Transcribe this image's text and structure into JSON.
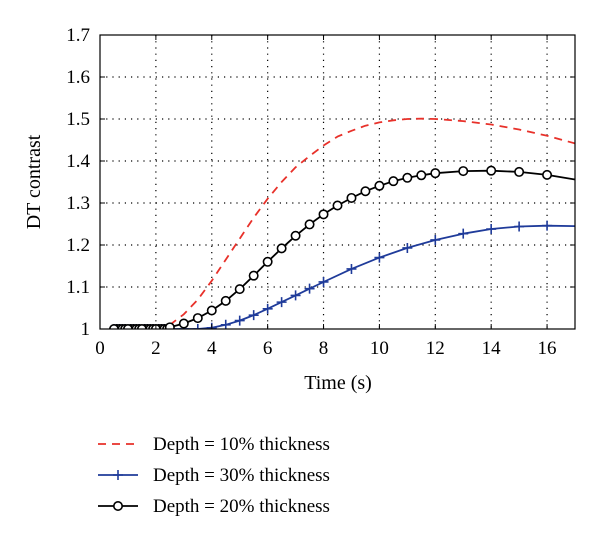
{
  "chart_data": {
    "type": "line",
    "title": "",
    "xlabel": "Time (s)",
    "ylabel": "DT contrast",
    "xlim": [
      0,
      17
    ],
    "ylim": [
      1,
      1.7
    ],
    "xticks": [
      0,
      2,
      4,
      6,
      8,
      10,
      12,
      14,
      16
    ],
    "yticks": [
      1,
      1.1,
      1.2,
      1.3,
      1.4,
      1.5,
      1.6,
      1.7
    ],
    "xtick_labels": [
      "0",
      "2",
      "4",
      "6",
      "8",
      "10",
      "12",
      "14",
      "16"
    ],
    "ytick_labels": [
      "1",
      "1.1",
      "1.2",
      "1.3",
      "1.4",
      "1.5",
      "1.6",
      "1.7"
    ],
    "grid": true,
    "legend_position": "below",
    "series": [
      {
        "name": "Depth = 10% thickness",
        "color": "#e8312a",
        "style": "dashed",
        "marker": "none",
        "x": [
          0.5,
          1.0,
          1.5,
          2.0,
          2.5,
          3.0,
          3.5,
          4.0,
          4.5,
          5.0,
          5.5,
          6.0,
          6.5,
          7.0,
          7.5,
          8.0,
          8.5,
          9.0,
          9.5,
          10.0,
          10.5,
          11.0,
          11.5,
          12.0,
          13.0,
          14.0,
          15.0,
          16.0,
          17.0
        ],
        "y": [
          1.0,
          1.0,
          1.0,
          1.002,
          1.01,
          1.035,
          1.07,
          1.115,
          1.165,
          1.215,
          1.265,
          1.31,
          1.35,
          1.385,
          1.412,
          1.437,
          1.458,
          1.472,
          1.484,
          1.492,
          1.497,
          1.5,
          1.501,
          1.5,
          1.495,
          1.487,
          1.475,
          1.46,
          1.442
        ]
      },
      {
        "name": "Depth = 30% thickness",
        "color": "#1f3b9a",
        "style": "solid",
        "marker": "plus",
        "x": [
          0.5,
          2.5,
          3.0,
          3.5,
          4.0,
          4.5,
          5.0,
          5.5,
          6.0,
          6.5,
          7.0,
          7.5,
          8.0,
          9.0,
          10.0,
          11.0,
          12.0,
          13.0,
          14.0,
          15.0,
          16.0,
          17.0
        ],
        "y": [
          1.0,
          1.0,
          1.0,
          1.0,
          1.003,
          1.01,
          1.02,
          1.033,
          1.048,
          1.064,
          1.08,
          1.096,
          1.112,
          1.143,
          1.17,
          1.193,
          1.212,
          1.227,
          1.238,
          1.244,
          1.246,
          1.245
        ]
      },
      {
        "name": "Depth = 20% thickness",
        "color": "#000000",
        "style": "solid",
        "marker": "circle",
        "x": [
          0.5,
          1.0,
          1.5,
          2.0,
          2.5,
          3.0,
          3.5,
          4.0,
          4.5,
          5.0,
          5.5,
          6.0,
          6.5,
          7.0,
          7.5,
          8.0,
          8.5,
          9.0,
          9.5,
          10.0,
          10.5,
          11.0,
          11.5,
          12.0,
          13.0,
          14.0,
          15.0,
          16.0,
          17.0
        ],
        "y": [
          1.0,
          1.0,
          1.0,
          1.0,
          1.004,
          1.013,
          1.026,
          1.044,
          1.067,
          1.095,
          1.127,
          1.16,
          1.192,
          1.222,
          1.249,
          1.273,
          1.294,
          1.312,
          1.328,
          1.341,
          1.352,
          1.36,
          1.366,
          1.371,
          1.376,
          1.377,
          1.374,
          1.367,
          1.356
        ]
      }
    ]
  }
}
